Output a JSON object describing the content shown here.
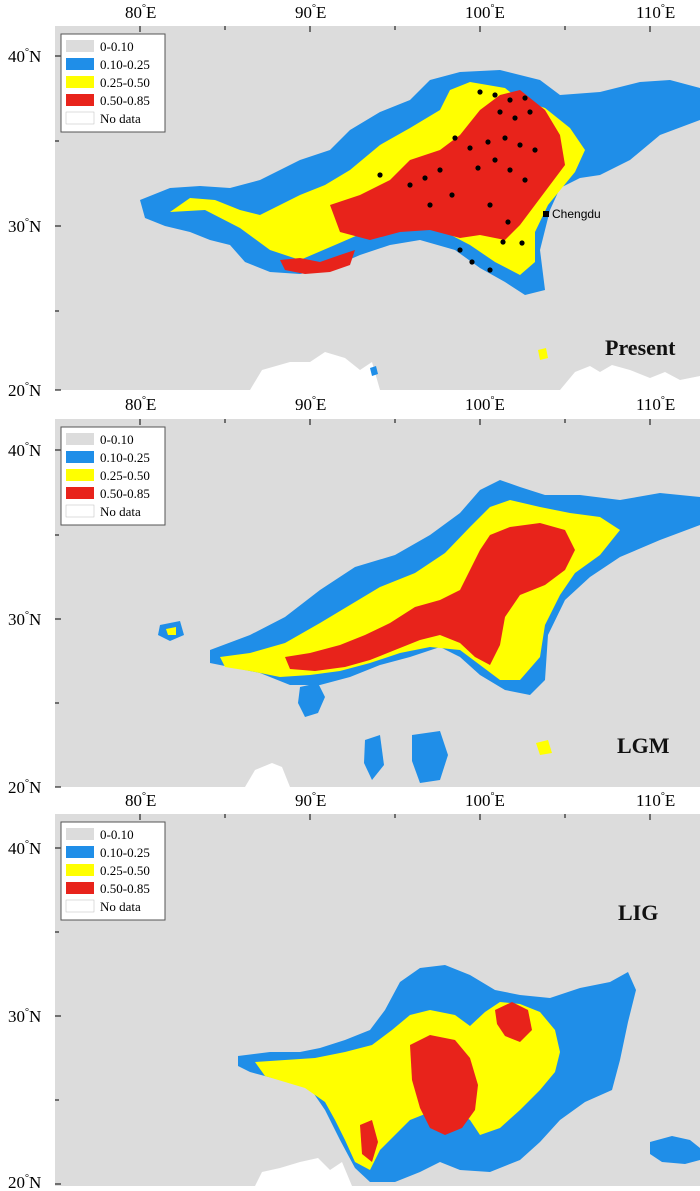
{
  "legend": {
    "items": [
      {
        "label": "0-0.10",
        "color": "#dcdcdc"
      },
      {
        "label": "0.10-0.25",
        "color": "#1f8ee8"
      },
      {
        "label": "0.25-0.50",
        "color": "#ffff00"
      },
      {
        "label": "0.50-0.85",
        "color": "#e8231b"
      },
      {
        "label": "No data",
        "color": "#ffffff"
      }
    ]
  },
  "axes": {
    "lon_labels": [
      "80",
      "90",
      "100",
      "110"
    ],
    "lon_suffix": "E",
    "lat_labels_top": [
      "40",
      "30",
      "20"
    ],
    "lat_suffix": "N",
    "degree_symbol": "°"
  },
  "panels": [
    {
      "id": "present",
      "title": "Present",
      "city": "Chengdu"
    },
    {
      "id": "lgm",
      "title": "LGM"
    },
    {
      "id": "lig",
      "title": "LIG"
    }
  ],
  "colors": {
    "background": "#dcdcdc",
    "low": "#1f8ee8",
    "mid": "#ffff00",
    "high": "#e8231b",
    "sea": "#ffffff",
    "points": "#000000"
  }
}
